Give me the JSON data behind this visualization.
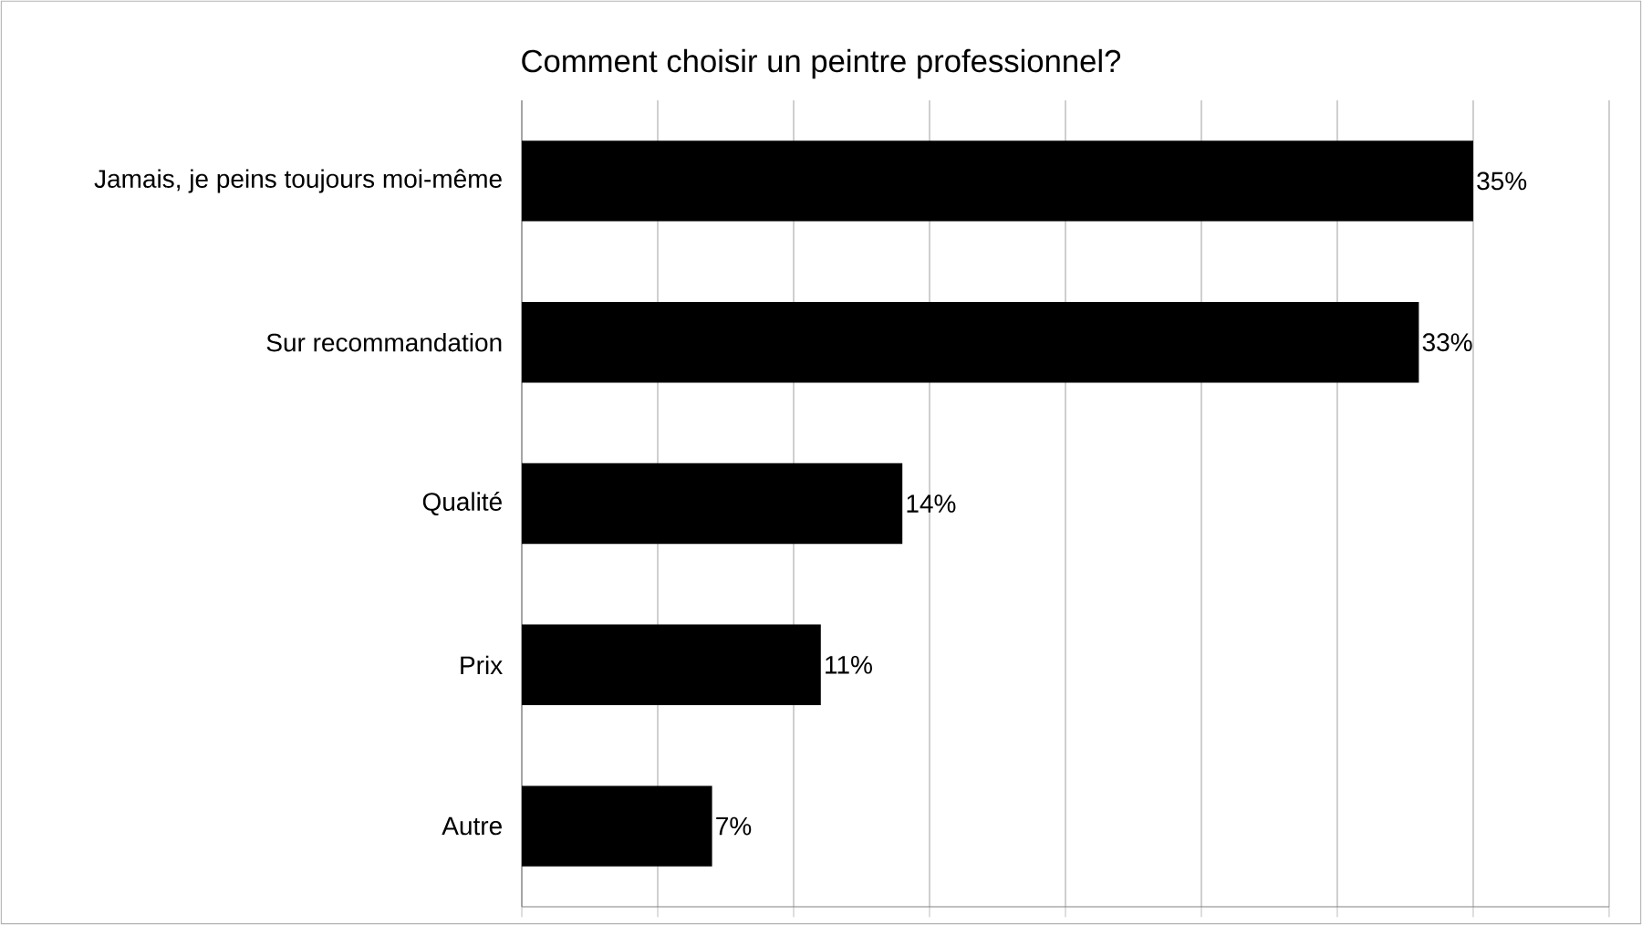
{
  "chart_data": {
    "type": "bar",
    "orientation": "horizontal",
    "title": "Comment choisir un peintre professionnel?",
    "categories": [
      "Jamais, je peins toujours moi-même",
      "Sur recommandation",
      "Qualité",
      "Prix",
      "Autre"
    ],
    "values": [
      35,
      33,
      14,
      11,
      7
    ],
    "value_labels": [
      "35%",
      "33%",
      "14%",
      "11%",
      "7%"
    ],
    "color": "#000000",
    "xlim": [
      0,
      40
    ],
    "xticks": [
      {
        "value": 0,
        "label": null
      },
      {
        "value": 5,
        "label": null
      },
      {
        "value": 10,
        "label": null
      },
      {
        "value": 15,
        "label": null
      },
      {
        "value": 20,
        "label": null
      },
      {
        "value": 25,
        "label": null
      },
      {
        "value": 30,
        "label": null
      },
      {
        "value": 35,
        "label": null
      },
      {
        "value": 40,
        "label": null
      }
    ],
    "grid": "x",
    "tick_labels": "y"
  }
}
